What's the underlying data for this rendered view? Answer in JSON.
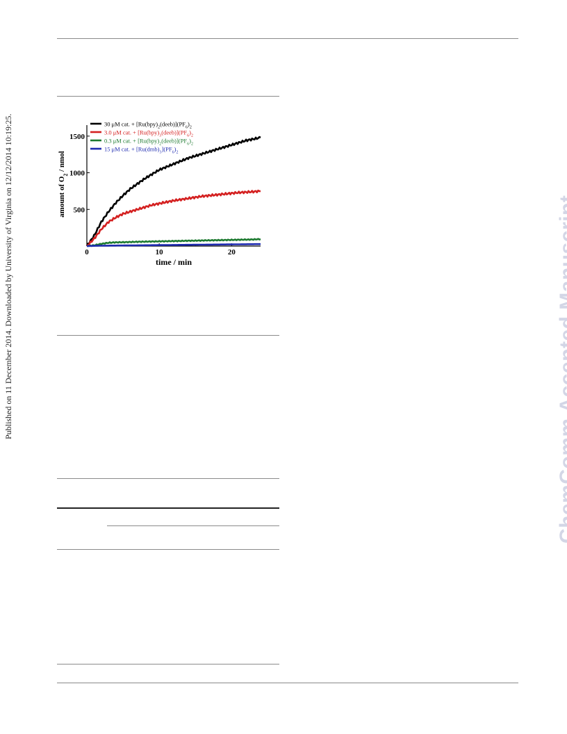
{
  "side_text_left": "Published on 11 December 2014. Downloaded by University of Virginia on 12/12/2014 10:19:25.",
  "side_text_right": "ChemComm Accepted Manuscript",
  "watermark_color": "#d3d6e6",
  "chart_data": {
    "type": "line",
    "title": "",
    "xlabel": "time / min",
    "ylabel": "amount of O2 / nmol",
    "xlim": [
      0,
      24
    ],
    "ylim": [
      0,
      1650
    ],
    "xticks": [
      "0",
      "10",
      "20"
    ],
    "yticks": [
      "500",
      "1000",
      "1500"
    ],
    "grid": false,
    "legend_position": "top-left",
    "x": [
      0,
      1,
      2,
      3,
      4,
      5,
      6,
      7,
      8,
      9,
      10,
      11,
      12,
      13,
      14,
      15,
      16,
      17,
      18,
      19,
      20,
      21,
      22,
      23,
      24
    ],
    "series": [
      {
        "name": "30 μM cat. + [Ru(bpy)2(deeb)](PF6)2",
        "color": "#000000",
        "values": [
          0,
          140,
          330,
          470,
          590,
          690,
          780,
          850,
          920,
          980,
          1040,
          1080,
          1120,
          1160,
          1200,
          1230,
          1260,
          1290,
          1320,
          1350,
          1380,
          1410,
          1440,
          1460,
          1480
        ]
      },
      {
        "name": "3.0 μM cat. + [Ru(bpy)3(deeb)](PF6)2",
        "color": "#d42020",
        "values": [
          0,
          100,
          230,
          330,
          390,
          440,
          470,
          500,
          530,
          560,
          580,
          600,
          620,
          635,
          650,
          665,
          680,
          690,
          700,
          710,
          720,
          730,
          735,
          742,
          750
        ]
      },
      {
        "name": "0.3 μM cat. + [Ru(bpy)2(deeb)](PF6)2",
        "color": "#1d7a30",
        "values": [
          0,
          10,
          30,
          45,
          50,
          52,
          55,
          58,
          60,
          62,
          64,
          66,
          68,
          70,
          72,
          74,
          76,
          78,
          80,
          82,
          84,
          86,
          88,
          90,
          95
        ]
      },
      {
        "name": "15 μM cat. + [Ru(dmb)3](PF6)2",
        "color": "#1e2bb0",
        "values": [
          0,
          3,
          5,
          6,
          7,
          8,
          9,
          10,
          11,
          12,
          13,
          14,
          15,
          16,
          17,
          18,
          19,
          20,
          21,
          22,
          23,
          24,
          25,
          26,
          27
        ]
      }
    ]
  }
}
